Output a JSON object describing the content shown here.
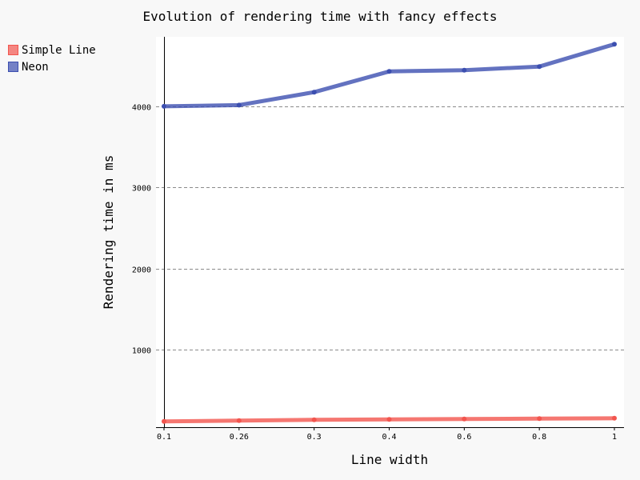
{
  "chart_data": {
    "type": "line",
    "title": "Evolution of rendering time with fancy effects",
    "xlabel": "Line width",
    "ylabel": "Rendering time in ms",
    "categories": [
      "0.1",
      "0.26",
      "0.3",
      "0.4",
      "0.6",
      "0.8",
      "1"
    ],
    "y_ticks": [
      1000,
      2000,
      3000,
      4000
    ],
    "ylim": [
      50,
      4800
    ],
    "grid": "horizontal dashed",
    "legend_position": "top-left",
    "series": [
      {
        "name": "Simple Line",
        "color": "#f2554e",
        "values": [
          120,
          130,
          140,
          145,
          150,
          155,
          160
        ]
      },
      {
        "name": "Neon",
        "color": "#3c4fb0",
        "values": [
          4000,
          4015,
          4175,
          4430,
          4445,
          4490,
          4765
        ]
      }
    ]
  }
}
